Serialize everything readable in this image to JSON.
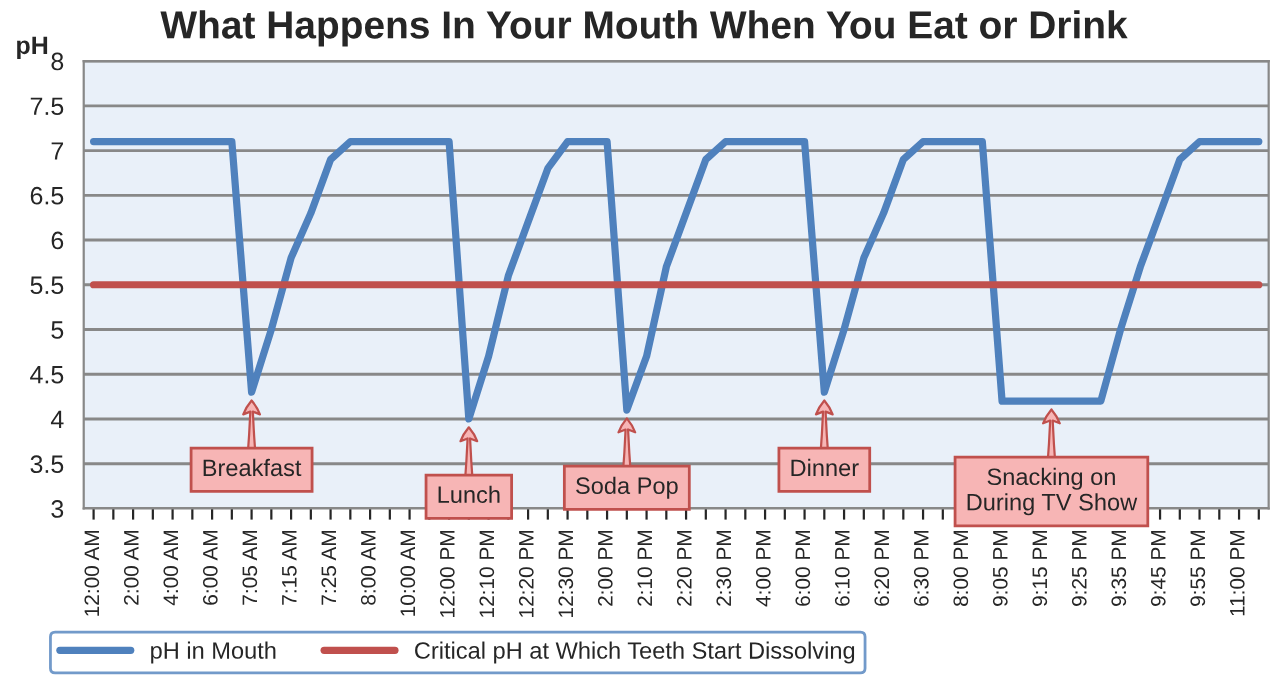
{
  "chart_data": {
    "type": "line",
    "title": "What Happens In Your Mouth When You Eat or Drink",
    "ylabel": "pH",
    "categories": [
      "12:00 AM",
      null,
      "2:00 AM",
      null,
      "4:00 AM",
      null,
      "6:00 AM",
      null,
      "7:05 AM",
      null,
      "7:15 AM",
      null,
      "7:25 AM",
      null,
      "8:00 AM",
      null,
      "10:00 AM",
      null,
      "12:00 PM",
      null,
      "12:10 PM",
      null,
      "12:20 PM",
      null,
      "12:30 PM",
      null,
      "2:00 PM",
      null,
      "2:10 PM",
      null,
      "2:20 PM",
      null,
      "2:30 PM",
      null,
      "4:00 PM",
      null,
      "6:00 PM",
      null,
      "6:10 PM",
      null,
      "6:20 PM",
      null,
      "6:30 PM",
      null,
      "8:00 PM",
      null,
      "9:05 PM",
      null,
      "9:15 PM",
      null,
      "9:25 PM",
      null,
      "9:35 PM",
      null,
      "9:45 PM",
      null,
      "9:55 PM",
      null,
      "11:00 PM",
      null
    ],
    "series": [
      {
        "name": "pH in Mouth",
        "color": "#4f81bd",
        "values": [
          7.1,
          7.1,
          7.1,
          7.1,
          7.1,
          7.1,
          7.1,
          7.1,
          4.3,
          5.0,
          5.8,
          6.3,
          6.9,
          7.1,
          7.1,
          7.1,
          7.1,
          7.1,
          7.1,
          4.0,
          4.7,
          5.6,
          6.2,
          6.8,
          7.1,
          7.1,
          7.1,
          4.1,
          4.7,
          5.7,
          6.3,
          6.9,
          7.1,
          7.1,
          7.1,
          7.1,
          7.1,
          4.3,
          5.0,
          5.8,
          6.3,
          6.9,
          7.1,
          7.1,
          7.1,
          7.1,
          4.2,
          4.2,
          4.2,
          4.2,
          4.2,
          4.2,
          5.0,
          5.7,
          6.3,
          6.9,
          7.1,
          7.1,
          7.1,
          7.1
        ]
      },
      {
        "name": "Critical pH at Which Teeth Start Dissolving",
        "color": "#c0504d",
        "values": [
          5.5,
          5.5,
          5.5,
          5.5,
          5.5,
          5.5,
          5.5,
          5.5,
          5.5,
          5.5,
          5.5,
          5.5,
          5.5,
          5.5,
          5.5,
          5.5,
          5.5,
          5.5,
          5.5,
          5.5,
          5.5,
          5.5,
          5.5,
          5.5,
          5.5,
          5.5,
          5.5,
          5.5,
          5.5,
          5.5,
          5.5,
          5.5,
          5.5,
          5.5,
          5.5,
          5.5,
          5.5,
          5.5,
          5.5,
          5.5,
          5.5,
          5.5,
          5.5,
          5.5,
          5.5,
          5.5,
          5.5,
          5.5,
          5.5,
          5.5,
          5.5,
          5.5,
          5.5,
          5.5,
          5.5,
          5.5,
          5.5,
          5.5,
          5.5,
          5.5
        ]
      }
    ],
    "annotations": [
      "Breakfast",
      "Lunch",
      "Soda Pop",
      "Dinner",
      "Snacking on\nDuring TV Show"
    ],
    "ylim": [
      3,
      8
    ],
    "yticks": [
      3,
      3.5,
      4,
      4.5,
      5,
      5.5,
      6,
      6.5,
      7,
      7.5,
      8
    ],
    "grid": "y",
    "legend": "bottom",
    "marker": "none",
    "line_style": "solid"
  }
}
